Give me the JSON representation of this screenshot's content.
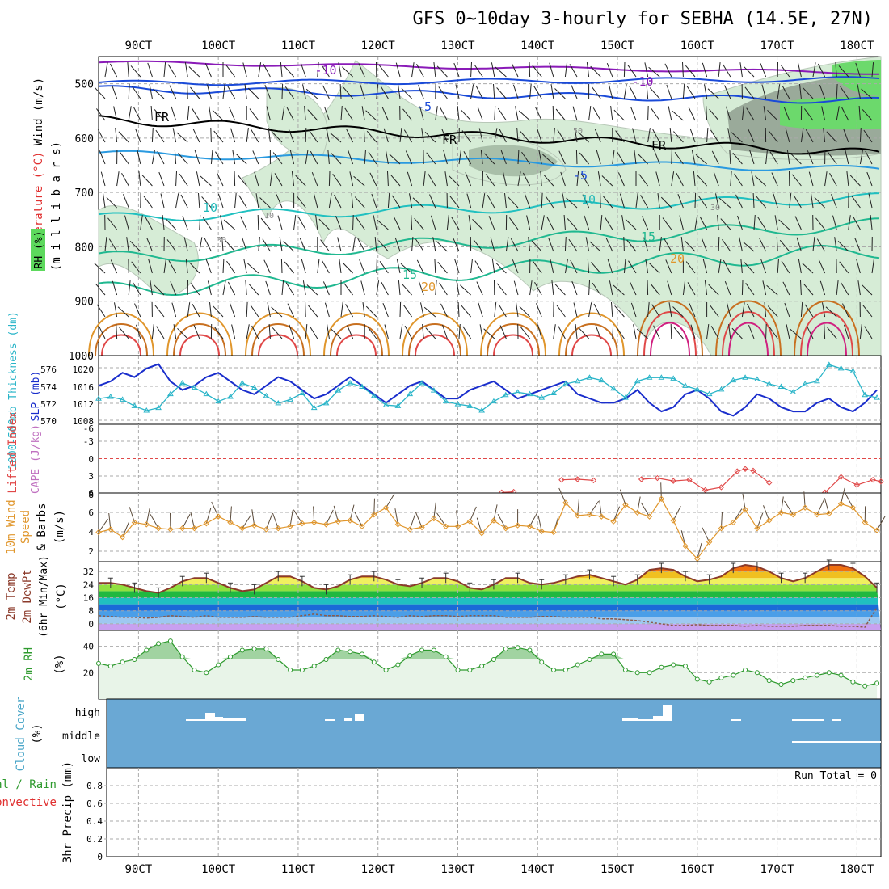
{
  "title": "GFS 0~10day 3-hourly for SEBHA (14.5E, 27N)",
  "time_axis": {
    "labels": [
      "90CT",
      "100CT",
      "110CT",
      "120CT",
      "130CT",
      "140CT",
      "150CT",
      "160CT",
      "170CT",
      "180CT"
    ],
    "range": [
      85,
      183
    ]
  },
  "colors": {
    "rh_shade": "#d6ecd6",
    "rh_dark": "#9aaa9a",
    "rh_green": "#6cd96c",
    "fr_line": "#000000",
    "slp": "#1a2ecc",
    "thickness": "#28b4c8",
    "lifted": "#e04848",
    "wind10": "#e0962c",
    "temp_line": "#8b3a2a",
    "rh2m": "#2e9a2e",
    "cloud_bg": "#6aa8d4"
  },
  "panels": {
    "upper": {
      "ylabel_wind": "Wind (m/s)",
      "ylabel_temp": "Temperature (°C)",
      "ylabel_units": "(m i l l i b a r s)",
      "ylabel_rh": "RH (%)",
      "pressure_ticks": [
        "500",
        "600",
        "700",
        "800",
        "900",
        "1000"
      ],
      "contour_labels": [
        "-10",
        "-10",
        "-5",
        "FR",
        "FR",
        "FR",
        "-5",
        "10",
        "10",
        "15",
        "15",
        "20",
        "20",
        "50",
        "30",
        "10",
        "30"
      ]
    },
    "slp": {
      "ylabel_thick": "1000-500mb Thickness (dm)",
      "ylabel_slp": "SLP (mb)",
      "left_ticks": [
        "576",
        "574",
        "572",
        "570"
      ],
      "right_ticks": [
        "1020",
        "1016",
        "1012",
        "1008"
      ]
    },
    "cape": {
      "ylabel_li": "Lifted Index",
      "ylabel_cape": "CAPE (J/kg)",
      "ticks": [
        "-6",
        "-3",
        "0",
        "3",
        "6"
      ]
    },
    "wind10": {
      "ylabel_a": "10m Wind",
      "ylabel_b": "Speed",
      "ylabel_c": "& Barbs",
      "units": "(m/s)",
      "ticks": [
        "8",
        "6",
        "4",
        "2"
      ]
    },
    "temp2m": {
      "ylabel_a": "2m Temp",
      "ylabel_b": "2m DewPt",
      "ylabel_c": "(6hr Min/Max)",
      "units": "(°C)",
      "ticks": [
        "32",
        "24",
        "16",
        "8",
        "0"
      ]
    },
    "rh2m": {
      "ylabel": "2m RH",
      "units": "(%)",
      "ticks": [
        "40",
        "20"
      ]
    },
    "cloud": {
      "ylabel": "Cloud Cover",
      "units": "(%)",
      "levels": [
        "high",
        "middle",
        "low"
      ]
    },
    "precip": {
      "ylabel_a": "Total / Rain",
      "ylabel_b": "Convective",
      "ylabel_c": "3hr Precip (mm)",
      "ticks": [
        "0.8",
        "0.6",
        "0.4",
        "0.2",
        "0"
      ],
      "run_total": "Run Total = 0"
    }
  },
  "chart_data": [
    {
      "type": "line",
      "title": "Sea level pressure and 1000-500mb thickness",
      "x": [
        85,
        86.5,
        88,
        89.5,
        91,
        92.5,
        94,
        95.5,
        97,
        98.5,
        100,
        101.5,
        103,
        104.5,
        106,
        107.5,
        109,
        110.5,
        112,
        113.5,
        115,
        116.5,
        118,
        119.5,
        121,
        122.5,
        124,
        125.5,
        127,
        128.5,
        130,
        131.5,
        133,
        134.5,
        136,
        137.5,
        139,
        140.5,
        142,
        143.5,
        145,
        146.5,
        148,
        149.5,
        151,
        152.5,
        154,
        155.5,
        157,
        158.5,
        160,
        161.5,
        163,
        164.5,
        166,
        167.5,
        169,
        170.5,
        172,
        173.5,
        175,
        176.5,
        178,
        179.5,
        181,
        182.5
      ],
      "series": [
        {
          "name": "SLP (mb)",
          "axis": "right",
          "ylim": [
            1007,
            1023
          ],
          "values": [
            1016,
            1017,
            1019,
            1018,
            1020,
            1021,
            1017,
            1015,
            1016,
            1018,
            1019,
            1017,
            1015,
            1014,
            1016,
            1018,
            1017,
            1015,
            1013,
            1014,
            1016,
            1018,
            1016,
            1014,
            1012,
            1014,
            1016,
            1017,
            1015,
            1013,
            1013,
            1015,
            1016,
            1017,
            1015,
            1013,
            1014,
            1015,
            1016,
            1017,
            1014,
            1013,
            1012,
            1012,
            1013,
            1015,
            1012,
            1010,
            1011,
            1014,
            1015,
            1013,
            1010,
            1009,
            1011,
            1014,
            1013,
            1011,
            1010,
            1010,
            1012,
            1013,
            1011,
            1010,
            1012,
            1015
          ]
        },
        {
          "name": "1000-500mb Thickness (dm)",
          "axis": "left",
          "ylim": [
            569.5,
            577
          ],
          "values": [
            572.3,
            572.5,
            572.2,
            571.5,
            571.0,
            571.3,
            572.8,
            574.0,
            573.5,
            572.8,
            572.0,
            572.5,
            574.0,
            573.5,
            572.6,
            571.8,
            572.2,
            572.9,
            571.3,
            571.8,
            573.2,
            574.0,
            573.6,
            572.6,
            571.6,
            571.5,
            572.8,
            574.0,
            573.2,
            572.0,
            571.7,
            571.5,
            571.0,
            572.0,
            572.7,
            573.0,
            572.8,
            572.4,
            572.9,
            573.9,
            574.2,
            574.6,
            574.3,
            573.4,
            572.4,
            574.2,
            574.6,
            574.6,
            574.5,
            573.7,
            573.3,
            572.8,
            573.3,
            574.3,
            574.6,
            574.4,
            573.9,
            573.6,
            573.0,
            573.9,
            574.2,
            576.0,
            575.6,
            575.3,
            572.7,
            572.4
          ]
        }
      ]
    },
    {
      "type": "line",
      "title": "Lifted Index",
      "x": [
        135.5,
        137,
        143,
        145,
        147,
        153,
        155,
        157,
        159,
        161,
        163,
        165,
        166,
        167,
        169,
        176,
        178,
        180,
        182,
        183
      ],
      "ylim": [
        6,
        -6
      ],
      "values": [
        5.9,
        5.8,
        3.7,
        3.6,
        3.8,
        3.6,
        3.4,
        3.9,
        3.7,
        5.5,
        5.0,
        2.2,
        1.8,
        2.1,
        4.2,
        5.9,
        3.2,
        4.6,
        3.7,
        4.0
      ]
    },
    {
      "type": "line",
      "title": "10m Wind Speed (m/s)",
      "x": [
        85,
        86.5,
        88,
        89.5,
        91,
        92.5,
        94,
        95.5,
        97,
        98.5,
        100,
        101.5,
        103,
        104.5,
        106,
        107.5,
        109,
        110.5,
        112,
        113.5,
        115,
        116.5,
        118,
        119.5,
        121,
        122.5,
        124,
        125.5,
        127,
        128.5,
        130,
        131.5,
        133,
        134.5,
        136,
        137.5,
        139,
        140.5,
        142,
        143.5,
        145,
        146.5,
        148,
        149.5,
        151,
        152.5,
        154,
        155.5,
        157,
        158.5,
        160,
        161.5,
        163,
        164.5,
        166,
        167.5,
        169,
        170.5,
        172,
        173.5,
        175,
        176.5,
        178,
        179.5,
        181,
        182.5
      ],
      "ylim": [
        1,
        8
      ],
      "values": [
        4.0,
        4.3,
        3.5,
        5.0,
        4.8,
        4.4,
        4.3,
        4.4,
        4.4,
        4.9,
        5.6,
        5.0,
        4.4,
        4.7,
        4.3,
        4.4,
        4.6,
        4.9,
        5.0,
        4.8,
        5.1,
        5.2,
        4.6,
        5.8,
        6.5,
        4.8,
        4.3,
        4.5,
        5.4,
        4.6,
        4.6,
        5.1,
        3.9,
        5.2,
        4.4,
        4.7,
        4.6,
        4.1,
        4.0,
        7.0,
        5.7,
        5.8,
        5.6,
        5.1,
        6.8,
        6.0,
        5.6,
        7.4,
        5.2,
        2.6,
        1.3,
        3.0,
        4.4,
        5.0,
        6.3,
        4.4,
        5.2,
        6.0,
        5.8,
        6.5,
        5.8,
        5.9,
        6.9,
        6.5,
        5.0,
        4.2
      ]
    },
    {
      "type": "area",
      "title": "2m Temperature and Dew Point (°C)",
      "x": [
        85,
        86.5,
        88,
        89.5,
        91,
        92.5,
        94,
        95.5,
        97,
        98.5,
        100,
        101.5,
        103,
        104.5,
        106,
        107.5,
        109,
        110.5,
        112,
        113.5,
        115,
        116.5,
        118,
        119.5,
        121,
        122.5,
        124,
        125.5,
        127,
        128.5,
        130,
        131.5,
        133,
        134.5,
        136,
        137.5,
        139,
        140.5,
        142,
        143.5,
        145,
        146.5,
        148,
        149.5,
        151,
        152.5,
        154,
        155.5,
        157,
        158.5,
        160,
        161.5,
        163,
        164.5,
        166,
        167.5,
        169,
        170.5,
        172,
        173.5,
        175,
        176.5,
        178,
        179.5,
        181,
        182.5
      ],
      "ylim": [
        -4,
        38
      ],
      "series": [
        {
          "name": "2m Temp",
          "values": [
            25,
            25,
            24,
            22,
            20,
            19,
            22,
            26,
            28,
            28,
            25,
            22,
            20,
            21,
            25,
            29,
            29,
            26,
            22,
            21,
            23,
            27,
            29,
            29,
            27,
            24,
            23,
            25,
            28,
            28,
            26,
            22,
            21,
            24,
            28,
            28,
            25,
            24,
            25,
            27,
            29,
            30,
            28,
            26,
            24,
            27,
            33,
            34,
            33,
            29,
            26,
            27,
            29,
            34,
            36,
            35,
            32,
            28,
            26,
            28,
            32,
            36,
            36,
            34,
            29,
            22
          ]
        },
        {
          "name": "2m DewPt",
          "values": [
            5,
            4.5,
            4,
            4,
            3.5,
            4,
            5,
            4.5,
            4,
            5,
            4,
            4,
            4,
            4.5,
            4,
            4,
            4,
            5,
            6,
            5,
            5,
            4.5,
            4.5,
            5,
            4.5,
            4,
            5,
            4.5,
            5,
            5,
            4.5,
            5,
            5,
            5,
            4,
            4,
            4,
            4.5,
            4.5,
            4,
            4,
            4,
            3,
            3,
            2.5,
            2,
            1,
            0,
            -1,
            -1,
            -0.5,
            -1,
            -1,
            -1,
            -1.5,
            -1,
            -1.5,
            -1.5,
            -1.5,
            -1,
            -1,
            -1,
            -1.5,
            -1.5,
            -2,
            10
          ]
        }
      ]
    },
    {
      "type": "area",
      "title": "2m RH (%)",
      "x": [
        85,
        86.5,
        88,
        89.5,
        91,
        92.5,
        94,
        95.5,
        97,
        98.5,
        100,
        101.5,
        103,
        104.5,
        106,
        107.5,
        109,
        110.5,
        112,
        113.5,
        115,
        116.5,
        118,
        119.5,
        121,
        122.5,
        124,
        125.5,
        127,
        128.5,
        130,
        131.5,
        133,
        134.5,
        136,
        137.5,
        139,
        140.5,
        142,
        143.5,
        145,
        146.5,
        148,
        149.5,
        151,
        152.5,
        154,
        155.5,
        157,
        158.5,
        160,
        161.5,
        163,
        164.5,
        166,
        167.5,
        169,
        170.5,
        172,
        173.5,
        175,
        176.5,
        178,
        179.5,
        181,
        182.5
      ],
      "ylim": [
        0,
        52
      ],
      "values": [
        27,
        25,
        28,
        30,
        37,
        42,
        44,
        32,
        22,
        20,
        26,
        32,
        37,
        38,
        38,
        30,
        22,
        22,
        25,
        30,
        37,
        36,
        34,
        28,
        22,
        26,
        33,
        37,
        37,
        32,
        22,
        22,
        25,
        30,
        38,
        39,
        37,
        28,
        22,
        22,
        26,
        30,
        34,
        34,
        22,
        20,
        20,
        24,
        26,
        25,
        15,
        13,
        16,
        18,
        22,
        20,
        14,
        11,
        14,
        16,
        18,
        20,
        18,
        13,
        10,
        12
      ]
    },
    {
      "type": "bar",
      "title": "Cloud Cover (%)",
      "categories": [
        "high",
        "middle",
        "low"
      ],
      "values": [
        0,
        0,
        0
      ]
    },
    {
      "type": "bar",
      "title": "3hr Precip (mm)",
      "ylim": [
        0,
        1
      ],
      "values": [
        0
      ],
      "run_total": 0
    }
  ]
}
